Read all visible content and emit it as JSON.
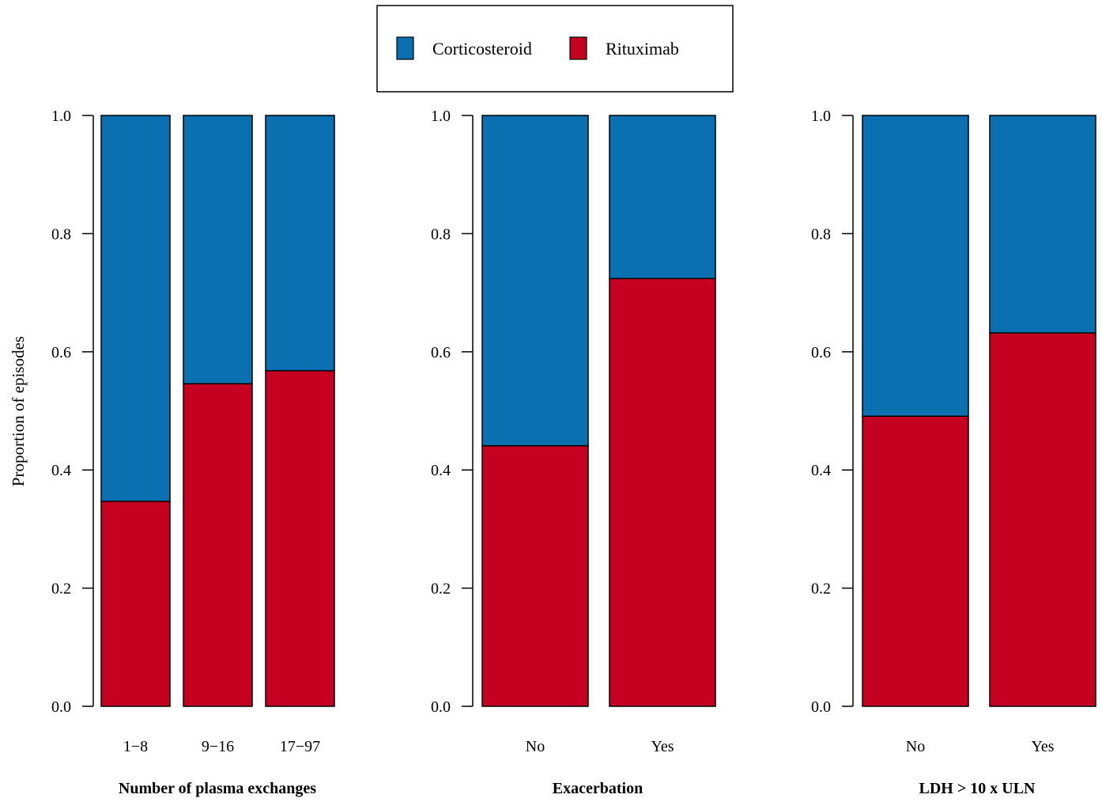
{
  "chart_data": [
    {
      "type": "bar",
      "stacked": true,
      "categories": [
        "1−8",
        "9−16",
        "17−97"
      ],
      "series": [
        {
          "name": "Rituximab",
          "values": [
            0.347,
            0.546,
            0.568
          ]
        },
        {
          "name": "Corticosteroid",
          "values": [
            0.653,
            0.454,
            0.432
          ]
        }
      ],
      "xlabel": "Number of plasma exchanges",
      "ylabel": "Proportion of episodes",
      "ylim": [
        0,
        1
      ],
      "yticks": [
        "0.0",
        "0.2",
        "0.4",
        "0.6",
        "0.8",
        "1.0"
      ]
    },
    {
      "type": "bar",
      "stacked": true,
      "categories": [
        "No",
        "Yes"
      ],
      "series": [
        {
          "name": "Rituximab",
          "values": [
            0.441,
            0.724
          ]
        },
        {
          "name": "Corticosteroid",
          "values": [
            0.559,
            0.276
          ]
        }
      ],
      "xlabel": "Exacerbation",
      "ylabel": "",
      "ylim": [
        0,
        1
      ],
      "yticks": [
        "0.0",
        "0.2",
        "0.4",
        "0.6",
        "0.8",
        "1.0"
      ]
    },
    {
      "type": "bar",
      "stacked": true,
      "categories": [
        "No",
        "Yes"
      ],
      "series": [
        {
          "name": "Rituximab",
          "values": [
            0.491,
            0.632
          ]
        },
        {
          "name": "Corticosteroid",
          "values": [
            0.509,
            0.368
          ]
        }
      ],
      "xlabel": "LDH > 10 x ULN",
      "ylabel": "",
      "ylim": [
        0,
        1
      ],
      "yticks": [
        "0.0",
        "0.2",
        "0.4",
        "0.6",
        "0.8",
        "1.0"
      ]
    }
  ],
  "legend": {
    "placement": "top-center",
    "items": [
      {
        "label": "Corticosteroid",
        "color": "#0a70b0"
      },
      {
        "label": "Rituximab",
        "color": "#c60021"
      }
    ]
  },
  "colors": {
    "Corticosteroid": "#0a70b0",
    "Rituximab": "#c60021"
  }
}
